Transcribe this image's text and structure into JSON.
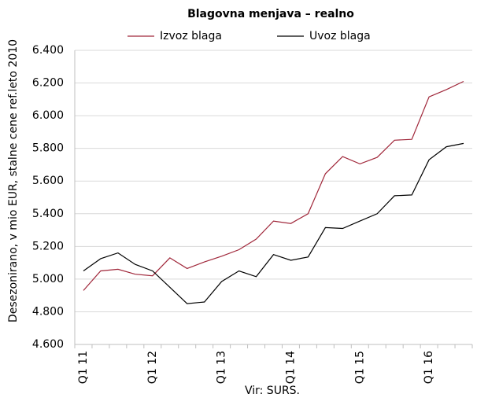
{
  "chart_data": {
    "type": "line",
    "title": "Blagovna menjava – realno",
    "y_label": "Desezonirano, v mio EUR, stalne cene ref.leto 2010",
    "source": "Vir: SURS.",
    "categories": [
      "Q1 11",
      null,
      null,
      null,
      "Q1 12",
      null,
      null,
      null,
      "Q1 13",
      null,
      null,
      null,
      "Q1 14",
      null,
      null,
      null,
      "Q1 15",
      null,
      null,
      null,
      "Q1 16",
      null,
      null
    ],
    "series": [
      {
        "name": "Izvoz blaga",
        "color": "#a0273a",
        "values": [
          4930,
          5050,
          5060,
          5030,
          5020,
          5130,
          5065,
          5105,
          5140,
          5180,
          5245,
          5355,
          5340,
          5400,
          5645,
          5750,
          5705,
          5745,
          5850,
          5855,
          6115,
          6160,
          6210
        ]
      },
      {
        "name": "Uvoz blaga",
        "color": "#000000",
        "values": [
          5050,
          5125,
          5160,
          5090,
          5050,
          4950,
          4850,
          4860,
          4985,
          5050,
          5015,
          5150,
          5115,
          5135,
          5315,
          5310,
          5355,
          5400,
          5510,
          5515,
          5730,
          5810,
          5830
        ]
      }
    ],
    "ylim": [
      4600,
      6400
    ],
    "yticks": [
      {
        "value": 4600,
        "label": "4.600"
      },
      {
        "value": 4800,
        "label": "4.800"
      },
      {
        "value": 5000,
        "label": "5.000"
      },
      {
        "value": 5200,
        "label": "5.200"
      },
      {
        "value": 5400,
        "label": "5.400"
      },
      {
        "value": 5600,
        "label": "5.600"
      },
      {
        "value": 5800,
        "label": "5.800"
      },
      {
        "value": 6000,
        "label": "6.000"
      },
      {
        "value": 6200,
        "label": "6.200"
      },
      {
        "value": 6400,
        "label": "6.400"
      }
    ],
    "grid": true
  }
}
